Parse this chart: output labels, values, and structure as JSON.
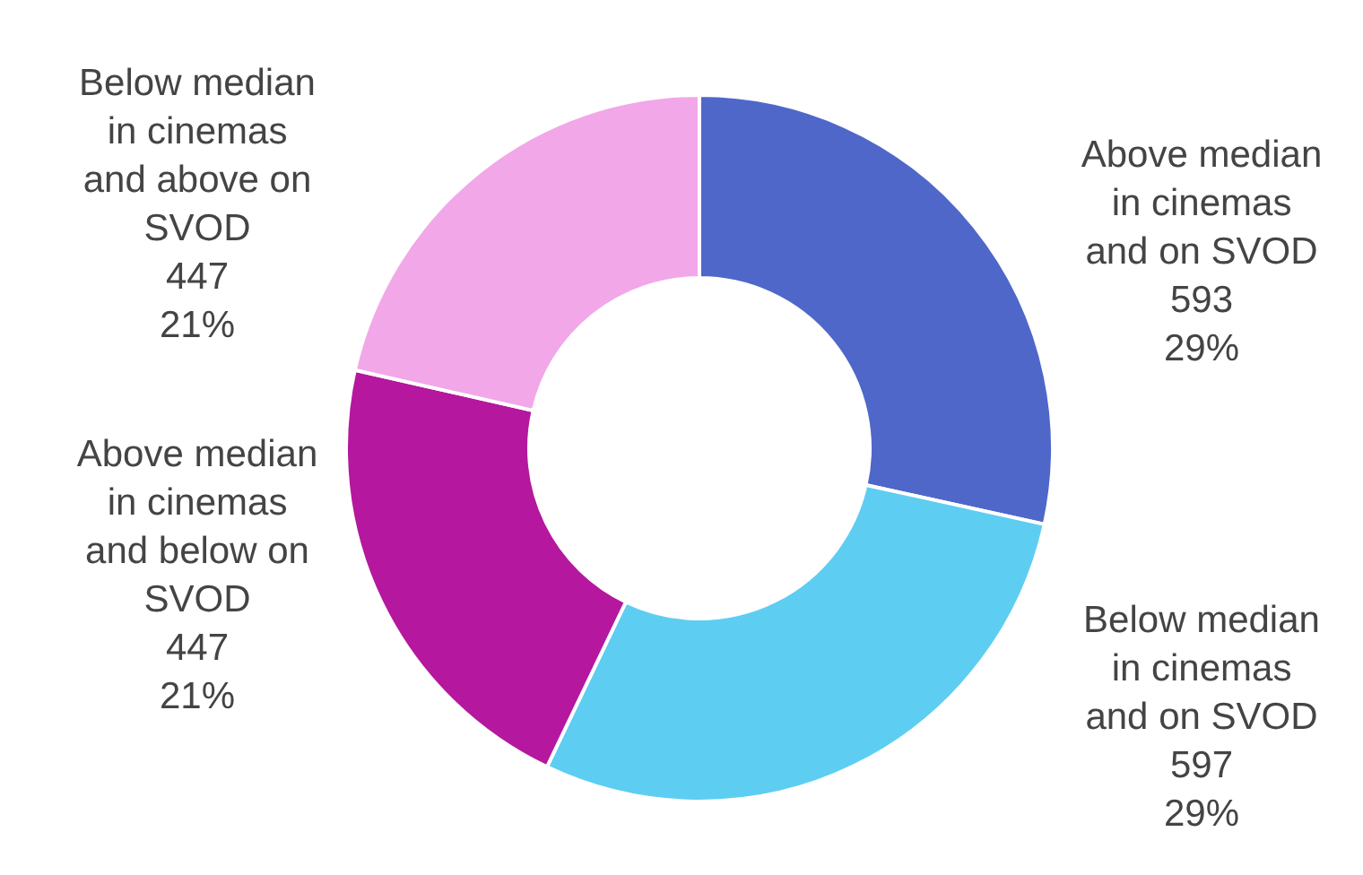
{
  "chart_data": {
    "type": "donut",
    "categories": [
      "Above median\nin cinemas\nand on SVOD",
      "Below median\nin cinemas\nand on SVOD",
      "Above median\nin cinemas\nand below on\nSVOD",
      "Below median\nin cinemas\nand above on\nSVOD"
    ],
    "values": [
      593,
      597,
      447,
      447
    ],
    "value_labels": [
      "593\n29%",
      "597\n29%",
      "447\n21%",
      "447\n21%"
    ],
    "colors": [
      "#4f67c9",
      "#5ecdf2",
      "#b5179e",
      "#f2a7e8"
    ]
  }
}
